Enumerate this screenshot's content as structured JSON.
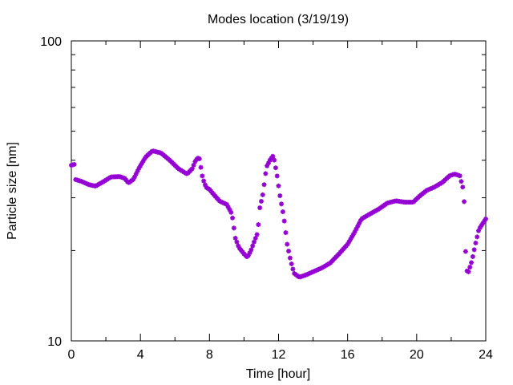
{
  "chart_data": {
    "type": "scatter",
    "title": "Modes location (3/19/19)",
    "xlabel": "Time [hour]",
    "ylabel": "Particle size [nm]",
    "xlim": [
      0,
      24
    ],
    "ylim": [
      10,
      100
    ],
    "yscale": "log",
    "grid": false,
    "legend": "none",
    "x_ticks": [
      0,
      4,
      8,
      12,
      16,
      20,
      24
    ],
    "x_tick_labels": [
      "0",
      "4",
      "8",
      "12",
      "16",
      "20",
      "24"
    ],
    "y_ticks": [
      10,
      100
    ],
    "y_tick_labels": [
      "10",
      "100"
    ],
    "marker_color": "#9400d3",
    "marker": "asterisk",
    "series": [
      {
        "anchors": [
          [
            0.0,
            38.5
          ],
          [
            0.2,
            38.8
          ],
          [
            0.25,
            34.5
          ],
          [
            0.6,
            34.0
          ],
          [
            1.0,
            33.2
          ],
          [
            1.4,
            32.8
          ],
          [
            1.8,
            33.8
          ],
          [
            2.3,
            35.2
          ],
          [
            2.8,
            35.3
          ],
          [
            3.1,
            34.8
          ],
          [
            3.3,
            33.6
          ],
          [
            3.6,
            34.6
          ],
          [
            3.9,
            37.5
          ],
          [
            4.3,
            41.0
          ],
          [
            4.7,
            43.0
          ],
          [
            5.2,
            42.3
          ],
          [
            5.7,
            40.0
          ],
          [
            6.2,
            37.5
          ],
          [
            6.7,
            36.0
          ],
          [
            7.0,
            37.5
          ],
          [
            7.2,
            40.0
          ],
          [
            7.4,
            41.0
          ],
          [
            7.6,
            35.0
          ],
          [
            7.8,
            32.5
          ],
          [
            8.0,
            32.0
          ],
          [
            8.3,
            30.5
          ],
          [
            8.6,
            29.2
          ],
          [
            9.0,
            28.5
          ],
          [
            9.3,
            26.5
          ],
          [
            9.5,
            22.0
          ],
          [
            9.7,
            20.5
          ],
          [
            10.0,
            19.5
          ],
          [
            10.2,
            19.0
          ],
          [
            10.4,
            20.0
          ],
          [
            10.6,
            21.5
          ],
          [
            10.8,
            23.0
          ],
          [
            10.9,
            27.5
          ],
          [
            11.1,
            31.0
          ],
          [
            11.3,
            38.0
          ],
          [
            11.5,
            40.0
          ],
          [
            11.7,
            41.5
          ],
          [
            11.9,
            36.0
          ],
          [
            12.1,
            30.0
          ],
          [
            12.3,
            26.0
          ],
          [
            12.5,
            21.0
          ],
          [
            12.7,
            18.5
          ],
          [
            12.9,
            16.8
          ],
          [
            13.2,
            16.3
          ],
          [
            13.6,
            16.6
          ],
          [
            14.0,
            17.0
          ],
          [
            14.5,
            17.5
          ],
          [
            15.0,
            18.2
          ],
          [
            15.5,
            19.5
          ],
          [
            16.0,
            21.0
          ],
          [
            16.4,
            23.0
          ],
          [
            16.8,
            25.5
          ],
          [
            17.3,
            26.5
          ],
          [
            17.8,
            27.5
          ],
          [
            18.3,
            28.8
          ],
          [
            18.8,
            29.3
          ],
          [
            19.3,
            29.0
          ],
          [
            19.8,
            29.0
          ],
          [
            20.2,
            30.5
          ],
          [
            20.6,
            31.8
          ],
          [
            21.0,
            32.5
          ],
          [
            21.5,
            33.8
          ],
          [
            21.9,
            35.5
          ],
          [
            22.2,
            36.0
          ],
          [
            22.5,
            35.5
          ],
          [
            22.7,
            32.0
          ],
          [
            22.8,
            26.5
          ],
          [
            22.85,
            17.2
          ],
          [
            23.0,
            17.0
          ],
          [
            23.2,
            18.5
          ],
          [
            23.4,
            21.0
          ],
          [
            23.6,
            23.5
          ],
          [
            23.8,
            24.5
          ],
          [
            24.0,
            25.5
          ]
        ]
      }
    ]
  }
}
